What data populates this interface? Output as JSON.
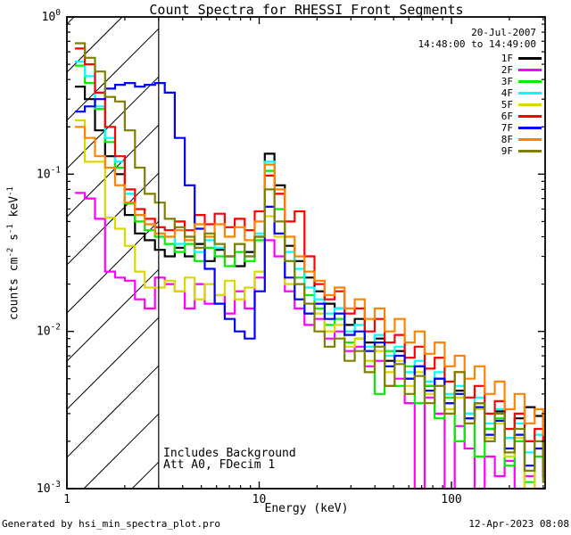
{
  "chart_data": {
    "type": "line",
    "step": true,
    "title": "Count Spectra for RHESSI Front Segments",
    "xlabel": "Energy (keV)",
    "ylabel": "counts cm^-2^ s^-1^ keV^-1^",
    "xscale": "log",
    "yscale": "log",
    "xlim": [
      1,
      307
    ],
    "ylim": [
      0.001,
      1
    ],
    "xticks": [
      {
        "v": 1,
        "label": "1"
      },
      {
        "v": 10,
        "label": "10"
      },
      {
        "v": 100,
        "label": "100"
      }
    ],
    "xminor": [
      2,
      3,
      4,
      5,
      6,
      7,
      8,
      9,
      20,
      30,
      40,
      50,
      60,
      70,
      80,
      90,
      200,
      300
    ],
    "yticks": [
      {
        "v": 1,
        "label": "10^0^"
      },
      {
        "v": 0.1,
        "label": "10^-1^"
      },
      {
        "v": 0.01,
        "label": "10^-2^"
      },
      {
        "v": 0.001,
        "label": "10^-3^"
      }
    ],
    "yminor": [
      0.9,
      0.8,
      0.7,
      0.6,
      0.5,
      0.4,
      0.3,
      0.2,
      0.09,
      0.08,
      0.07,
      0.06,
      0.05,
      0.04,
      0.03,
      0.02,
      0.009,
      0.008,
      0.007,
      0.006,
      0.005,
      0.004,
      0.003,
      0.002
    ],
    "hatch": {
      "from": 1,
      "to": 3,
      "spacing": 54
    },
    "header": {
      "date": "20-Jul-2007",
      "time_range": "14:48:00 to 14:49:00"
    },
    "annotations": {
      "line1": "Includes Background",
      "line2": "Att A0, FDecim 1"
    },
    "energies": [
      1.1,
      1.24,
      1.4,
      1.58,
      1.78,
      2.0,
      2.26,
      2.54,
      2.87,
      3.23,
      3.64,
      4.1,
      4.62,
      5.21,
      5.87,
      6.62,
      7.46,
      8.41,
      9.48,
      10.7,
      12.0,
      13.6,
      15.3,
      17.2,
      19.4,
      21.9,
      24.7,
      27.8,
      31.4,
      35.4,
      39.9,
      44.9,
      50.7,
      57.1,
      64.4,
      72.6,
      81.8,
      92.2,
      104,
      117,
      132,
      149,
      168,
      189,
      213,
      240,
      271,
      300
    ],
    "series": [
      {
        "name": "1F",
        "color": "#000000",
        "values": [
          0.36,
          0.3,
          0.19,
          0.13,
          0.1,
          0.055,
          0.042,
          0.038,
          0.033,
          0.03,
          0.034,
          0.03,
          0.036,
          0.028,
          0.033,
          0.03,
          0.026,
          0.032,
          0.04,
          0.135,
          0.085,
          0.035,
          0.028,
          0.022,
          0.018,
          0.015,
          0.014,
          0.011,
          0.012,
          0.0085,
          0.009,
          0.0065,
          0.0075,
          0.005,
          0.006,
          0.0045,
          0.005,
          0.0035,
          0.0042,
          0.0028,
          0.0035,
          0.0024,
          0.0031,
          0.0021,
          0.0028,
          0.0033,
          0.0029,
          0.0025
        ]
      },
      {
        "name": "2F",
        "color": "#FF00FF",
        "values": [
          0.076,
          0.07,
          0.052,
          0.024,
          0.022,
          0.021,
          0.016,
          0.014,
          0.022,
          0.02,
          0.018,
          0.014,
          0.02,
          0.015,
          0.017,
          0.013,
          0.018,
          0.014,
          0.022,
          0.038,
          0.03,
          0.018,
          0.014,
          0.011,
          0.012,
          0.009,
          0.01,
          0.0075,
          0.008,
          0.006,
          0.0065,
          0.0045,
          0.005,
          0.0035,
          0.0009,
          0.0038,
          0.003,
          0.0008,
          0.0025,
          0.0018,
          0.0008,
          0.0016,
          0.0012,
          0.0015,
          0.0008,
          0.0012,
          0.0009,
          0.0008
        ]
      },
      {
        "name": "3F",
        "color": "#00EE00",
        "values": [
          0.49,
          0.38,
          0.26,
          0.16,
          0.11,
          0.065,
          0.05,
          0.044,
          0.04,
          0.036,
          0.032,
          0.036,
          0.028,
          0.034,
          0.03,
          0.026,
          0.032,
          0.028,
          0.038,
          0.105,
          0.06,
          0.028,
          0.022,
          0.017,
          0.014,
          0.011,
          0.012,
          0.0085,
          0.009,
          0.0065,
          0.004,
          0.0075,
          0.0045,
          0.006,
          0.0035,
          0.0045,
          0.0028,
          0.0038,
          0.002,
          0.003,
          0.0016,
          0.0024,
          0.0028,
          0.0014,
          0.002,
          0.0011,
          0.0016,
          0.0012
        ]
      },
      {
        "name": "4F",
        "color": "#00FFFF",
        "values": [
          0.52,
          0.42,
          0.27,
          0.17,
          0.12,
          0.075,
          0.055,
          0.048,
          0.042,
          0.04,
          0.036,
          0.04,
          0.032,
          0.038,
          0.034,
          0.03,
          0.036,
          0.03,
          0.042,
          0.12,
          0.075,
          0.032,
          0.025,
          0.019,
          0.016,
          0.013,
          0.014,
          0.01,
          0.011,
          0.008,
          0.0095,
          0.007,
          0.008,
          0.0055,
          0.0065,
          0.0048,
          0.0055,
          0.004,
          0.0045,
          0.003,
          0.0038,
          0.0026,
          0.0032,
          0.0021,
          0.0026,
          0.0017,
          0.0022,
          0.0015
        ]
      },
      {
        "name": "5F",
        "color": "#D9D900",
        "values": [
          0.22,
          0.12,
          0.12,
          0.053,
          0.045,
          0.035,
          0.024,
          0.019,
          0.019,
          0.021,
          0.018,
          0.022,
          0.016,
          0.02,
          0.017,
          0.021,
          0.016,
          0.019,
          0.024,
          0.054,
          0.04,
          0.02,
          0.016,
          0.013,
          0.013,
          0.01,
          0.011,
          0.008,
          0.009,
          0.0065,
          0.0075,
          0.0055,
          0.0065,
          0.0045,
          0.0055,
          0.004,
          0.0045,
          0.0032,
          0.0038,
          0.0026,
          0.0032,
          0.0021,
          0.0026,
          0.0016,
          0.0021,
          0.0009,
          0.0018,
          0.0012
        ]
      },
      {
        "name": "6F",
        "color": "#FF0000",
        "values": [
          0.63,
          0.5,
          0.33,
          0.2,
          0.13,
          0.08,
          0.06,
          0.052,
          0.046,
          0.044,
          0.05,
          0.044,
          0.055,
          0.048,
          0.056,
          0.046,
          0.052,
          0.044,
          0.058,
          0.098,
          0.075,
          0.05,
          0.058,
          0.03,
          0.02,
          0.016,
          0.018,
          0.013,
          0.014,
          0.01,
          0.012,
          0.0085,
          0.0095,
          0.0068,
          0.008,
          0.0058,
          0.0068,
          0.0048,
          0.0055,
          0.0038,
          0.0045,
          0.003,
          0.0036,
          0.0024,
          0.003,
          0.002,
          0.0024,
          0.0016
        ]
      },
      {
        "name": "7F",
        "color": "#0000FF",
        "values": [
          0.25,
          0.27,
          0.3,
          0.35,
          0.37,
          0.38,
          0.36,
          0.37,
          0.38,
          0.33,
          0.17,
          0.085,
          0.045,
          0.025,
          0.015,
          0.012,
          0.01,
          0.009,
          0.018,
          0.062,
          0.042,
          0.022,
          0.016,
          0.013,
          0.015,
          0.012,
          0.013,
          0.0095,
          0.01,
          0.0075,
          0.0085,
          0.006,
          0.007,
          0.005,
          0.006,
          0.0042,
          0.005,
          0.0035,
          0.004,
          0.0028,
          0.0033,
          0.0022,
          0.0027,
          0.0018,
          0.0022,
          0.0014,
          0.0018,
          0.0012
        ]
      },
      {
        "name": "8F",
        "color": "#FF8300",
        "values": [
          0.2,
          0.17,
          0.13,
          0.11,
          0.085,
          0.066,
          0.055,
          0.048,
          0.042,
          0.04,
          0.044,
          0.038,
          0.048,
          0.04,
          0.048,
          0.04,
          0.046,
          0.038,
          0.05,
          0.115,
          0.08,
          0.04,
          0.03,
          0.024,
          0.021,
          0.017,
          0.019,
          0.014,
          0.016,
          0.012,
          0.014,
          0.01,
          0.012,
          0.0085,
          0.01,
          0.0072,
          0.0085,
          0.006,
          0.007,
          0.005,
          0.006,
          0.004,
          0.0048,
          0.0032,
          0.004,
          0.0026,
          0.0032,
          0.0022
        ]
      },
      {
        "name": "9F",
        "color": "#808000",
        "values": [
          0.68,
          0.55,
          0.45,
          0.31,
          0.29,
          0.19,
          0.11,
          0.075,
          0.066,
          0.052,
          0.046,
          0.04,
          0.034,
          0.042,
          0.036,
          0.03,
          0.036,
          0.03,
          0.04,
          0.08,
          0.05,
          0.028,
          0.02,
          0.015,
          0.01,
          0.008,
          0.009,
          0.0065,
          0.0075,
          0.0055,
          0.008,
          0.0045,
          0.0062,
          0.004,
          0.0052,
          0.0035,
          0.0045,
          0.003,
          0.0055,
          0.0026,
          0.0035,
          0.002,
          0.003,
          0.0017,
          0.0024,
          0.0013,
          0.002,
          0.0011
        ]
      }
    ]
  },
  "footer": {
    "left": "Generated by hsi_min_spectra_plot.pro",
    "right": "12-Apr-2023 08:08"
  }
}
